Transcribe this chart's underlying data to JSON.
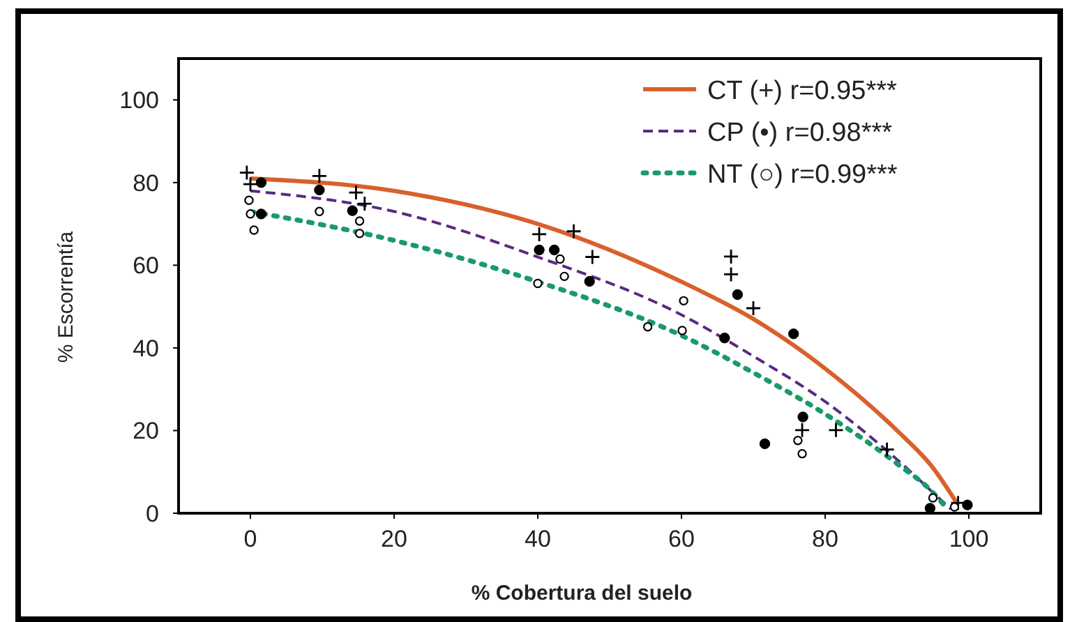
{
  "chart_data": {
    "type": "scatter",
    "xlabel": "% Cobertura del suelo",
    "ylabel": "% Escorrentía",
    "xlim": [
      -10,
      110
    ],
    "ylim": [
      0,
      110
    ],
    "xticks": [
      0,
      20,
      40,
      60,
      80,
      100
    ],
    "yticks": [
      0,
      20,
      40,
      60,
      80,
      100
    ],
    "grid": false,
    "legend": "top right",
    "series": [
      {
        "type": "line",
        "name": "CT (+) r=0.95***",
        "color": "#d9602c",
        "line_style": "solid",
        "marker": "none",
        "x": [
          0,
          20,
          40,
          60,
          70,
          80,
          90,
          95,
          98.5
        ],
        "values": [
          81,
          78,
          70,
          56,
          47,
          35,
          20,
          11,
          2
        ]
      },
      {
        "type": "line",
        "name": "CP (•) r=0.98***",
        "color": "#5a2a82",
        "line_style": "dashed",
        "marker": "none",
        "x": [
          0,
          20,
          40,
          60,
          70,
          80,
          90,
          95,
          97.5
        ],
        "values": [
          78,
          73,
          62,
          48,
          38,
          27,
          13,
          5,
          1
        ]
      },
      {
        "type": "line",
        "name": "NT (○) r=0.99***",
        "color": "#1a9a6a",
        "line_style": "dotted",
        "marker": "none",
        "x": [
          0,
          20,
          40,
          60,
          70,
          80,
          90,
          95,
          97
        ],
        "values": [
          73,
          66,
          56,
          43,
          34,
          24,
          12,
          5,
          1
        ]
      },
      {
        "color": "#000000",
        "marker": "cross",
        "x": [
          -0.5,
          0,
          9.6,
          14.7,
          15.9,
          40.2,
          45,
          47.6,
          66.9,
          66.9,
          70,
          76.8,
          81.5,
          88.6,
          98.5
        ],
        "values": [
          82.4,
          79.6,
          81.6,
          77.6,
          74.9,
          67.5,
          68.2,
          62,
          62.1,
          57.8,
          49.6,
          20.1,
          20.1,
          15.4,
          2.5
        ]
      },
      {
        "color": "#000000",
        "marker": "circle",
        "x": [
          1.5,
          1.5,
          9.6,
          14.2,
          40.2,
          42.3,
          47.2,
          66,
          67.8,
          71.6,
          75.6,
          76.9,
          94.6,
          99.8
        ],
        "values": [
          80,
          72.4,
          78.2,
          73.2,
          63.7,
          63.7,
          56.1,
          42.4,
          52.9,
          16.8,
          43.4,
          23.3,
          1.2,
          2
        ]
      },
      {
        "color": "#000000",
        "marker": "circle",
        "x": [
          -0.2,
          0,
          0.5,
          9.6,
          15.2,
          15.2,
          40,
          43.1,
          43.7,
          55.3,
          60.3,
          60.1,
          76.2,
          76.8,
          95,
          98
        ],
        "values": [
          75.7,
          72.4,
          68.5,
          73,
          70.7,
          67.7,
          55.6,
          61.5,
          57.3,
          45.1,
          51.4,
          44.2,
          17.6,
          14.4,
          3.7,
          1.5
        ]
      }
    ]
  }
}
